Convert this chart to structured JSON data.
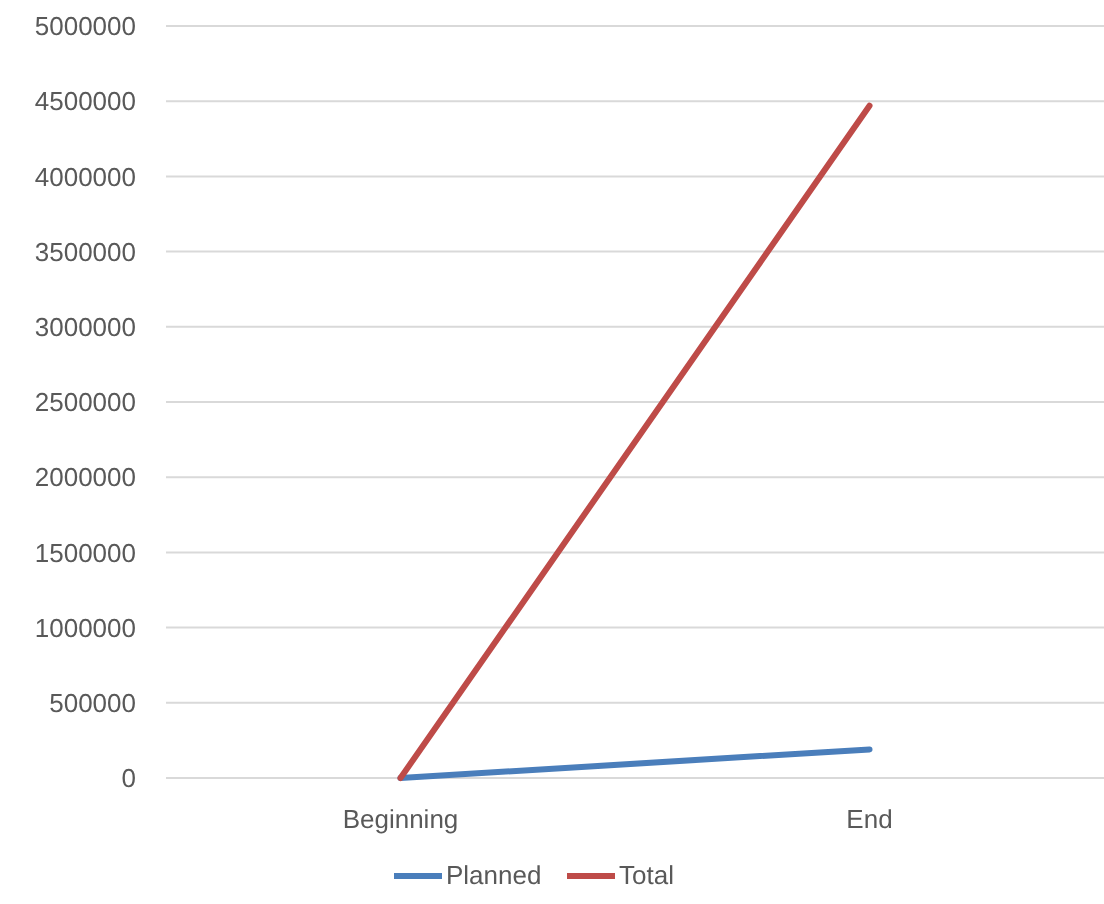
{
  "chart_data": {
    "type": "line",
    "categories": [
      "Beginning",
      "End"
    ],
    "series": [
      {
        "name": "Planned",
        "color": "#4a7ebb",
        "values": [
          0,
          190000
        ]
      },
      {
        "name": "Total",
        "color": "#be4b48",
        "values": [
          0,
          4470000
        ]
      }
    ],
    "ylim": [
      0,
      5000000
    ],
    "yticks": [
      0,
      500000,
      1000000,
      1500000,
      2000000,
      2500000,
      3000000,
      3500000,
      4000000,
      4500000,
      5000000
    ],
    "grid": "y",
    "legend": "bottom",
    "marker": "none",
    "line_style": "solid"
  }
}
